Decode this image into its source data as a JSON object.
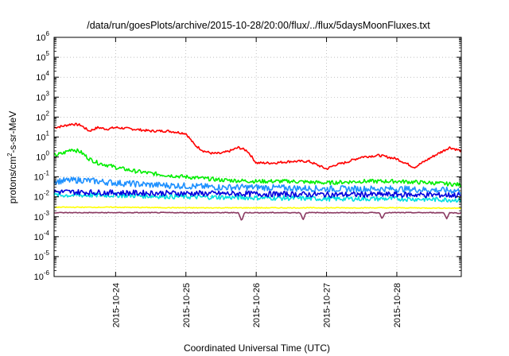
{
  "chart_data": {
    "type": "line",
    "title": "/data/run/goesPlots/archive/2015-10-28/20:00/flux/../flux/5daysMoonFluxes.txt",
    "xlabel": "Coordinated Universal Time (UTC)",
    "ylabel_parts": [
      "protons/cm",
      "2",
      "-s-sr-MeV"
    ],
    "yscale": "log",
    "ylim": [
      1e-06,
      1000000.0
    ],
    "xlim": [
      "2015-10-23T03:00",
      "2015-10-28T22:00"
    ],
    "grid": true,
    "legend": "none",
    "y_ticks": [
      {
        "base": "10",
        "exp": "-6",
        "value": 1e-06
      },
      {
        "base": "10",
        "exp": "-5",
        "value": 1e-05
      },
      {
        "base": "10",
        "exp": "-4",
        "value": 0.0001
      },
      {
        "base": "10",
        "exp": "-3",
        "value": 0.001
      },
      {
        "base": "10",
        "exp": "-2",
        "value": 0.01
      },
      {
        "base": "10",
        "exp": "-1",
        "value": 0.1
      },
      {
        "base": "10",
        "exp": "0",
        "value": 1
      },
      {
        "base": "10",
        "exp": "1",
        "value": 10
      },
      {
        "base": "10",
        "exp": "2",
        "value": 100
      },
      {
        "base": "10",
        "exp": "3",
        "value": 1000
      },
      {
        "base": "10",
        "exp": "4",
        "value": 10000
      },
      {
        "base": "10",
        "exp": "5",
        "value": 100000
      },
      {
        "base": "10",
        "exp": "6",
        "value": 1000000
      }
    ],
    "x_ticks": [
      {
        "label": "2015-10-24",
        "value": "2015-10-24T00:00"
      },
      {
        "label": "2015-10-25",
        "value": "2015-10-25T00:00"
      },
      {
        "label": "2015-10-26",
        "value": "2015-10-26T00:00"
      },
      {
        "label": "2015-10-27",
        "value": "2015-10-27T00:00"
      },
      {
        "label": "2015-10-28",
        "value": "2015-10-28T00:00"
      }
    ],
    "series": [
      {
        "color": "#ff0000",
        "noise": 0.03,
        "x": [
          "2015-10-23T03:00",
          "2015-10-23T06:00",
          "2015-10-23T09:00",
          "2015-10-23T12:00",
          "2015-10-23T15:00",
          "2015-10-23T18:00",
          "2015-10-23T21:00",
          "2015-10-24T00:00",
          "2015-10-24T06:00",
          "2015-10-24T12:00",
          "2015-10-24T18:00",
          "2015-10-25T00:00",
          "2015-10-25T03:00",
          "2015-10-25T06:00",
          "2015-10-25T09:00",
          "2015-10-25T12:00",
          "2015-10-25T15:00",
          "2015-10-25T18:00",
          "2015-10-25T21:00",
          "2015-10-26T00:00",
          "2015-10-26T06:00",
          "2015-10-26T12:00",
          "2015-10-26T18:00",
          "2015-10-27T00:00",
          "2015-10-27T03:00",
          "2015-10-27T06:00",
          "2015-10-27T12:00",
          "2015-10-27T18:00",
          "2015-10-28T00:00",
          "2015-10-28T06:00",
          "2015-10-28T12:00",
          "2015-10-28T18:00",
          "2015-10-28T22:00"
        ],
        "y": [
          30,
          35,
          45,
          40,
          20,
          30,
          25,
          30,
          25,
          20,
          20,
          15,
          4,
          2,
          1.5,
          1.5,
          2,
          3,
          2,
          0.5,
          0.5,
          0.6,
          0.6,
          0.25,
          0.4,
          0.5,
          1,
          1.2,
          0.8,
          0.3,
          1,
          3,
          2
        ]
      },
      {
        "color": "#00ee00",
        "noise": 0.05,
        "x": [
          "2015-10-23T03:00",
          "2015-10-23T06:00",
          "2015-10-23T09:00",
          "2015-10-23T12:00",
          "2015-10-23T15:00",
          "2015-10-23T18:00",
          "2015-10-23T21:00",
          "2015-10-24T00:00",
          "2015-10-24T06:00",
          "2015-10-24T12:00",
          "2015-10-24T18:00",
          "2015-10-25T00:00",
          "2015-10-25T12:00",
          "2015-10-26T00:00",
          "2015-10-26T12:00",
          "2015-10-27T00:00",
          "2015-10-27T12:00",
          "2015-10-28T00:00",
          "2015-10-28T12:00",
          "2015-10-28T22:00"
        ],
        "y": [
          1.2,
          1.5,
          2.5,
          1.8,
          0.8,
          0.5,
          0.4,
          0.3,
          0.2,
          0.15,
          0.12,
          0.1,
          0.07,
          0.06,
          0.06,
          0.05,
          0.06,
          0.06,
          0.05,
          0.04
        ]
      },
      {
        "color": "#1e90ff",
        "noise": 0.08,
        "x": [
          "2015-10-23T03:00",
          "2015-10-23T12:00",
          "2015-10-24T00:00",
          "2015-10-24T12:00",
          "2015-10-25T00:00",
          "2015-10-25T12:00",
          "2015-10-26T00:00",
          "2015-10-27T00:00",
          "2015-10-28T00:00",
          "2015-10-28T22:00"
        ],
        "y": [
          0.06,
          0.07,
          0.05,
          0.04,
          0.035,
          0.03,
          0.03,
          0.025,
          0.025,
          0.02
        ]
      },
      {
        "color": "#00e0e0",
        "noise": 0.06,
        "x": [
          "2015-10-23T03:00",
          "2015-10-24T00:00",
          "2015-10-25T00:00",
          "2015-10-26T00:00",
          "2015-10-27T00:00",
          "2015-10-28T00:00",
          "2015-10-28T22:00"
        ],
        "y": [
          0.012,
          0.012,
          0.01,
          0.009,
          0.008,
          0.008,
          0.007
        ]
      },
      {
        "color": "#0000dd",
        "noise": 0.07,
        "x": [
          "2015-10-23T03:00",
          "2015-10-24T00:00",
          "2015-10-25T00:00",
          "2015-10-26T00:00",
          "2015-10-27T00:00",
          "2015-10-28T00:00",
          "2015-10-28T22:00"
        ],
        "y": [
          0.018,
          0.016,
          0.015,
          0.014,
          0.013,
          0.013,
          0.012
        ]
      },
      {
        "color": "#ffff00",
        "noise": 0.01,
        "x": [
          "2015-10-23T03:00",
          "2015-10-24T00:00",
          "2015-10-25T00:00",
          "2015-10-26T00:00",
          "2015-10-27T00:00",
          "2015-10-28T00:00",
          "2015-10-28T22:00"
        ],
        "y": [
          0.003,
          0.003,
          0.0028,
          0.0028,
          0.0028,
          0.0028,
          0.0027
        ]
      },
      {
        "color": "#8b3a62",
        "noise": 0.01,
        "x": [
          "2015-10-23T03:00",
          "2015-10-24T00:00",
          "2015-10-25T00:00",
          "2015-10-25T18:00",
          "2015-10-25T19:00",
          "2015-10-25T20:00",
          "2015-10-26T00:00",
          "2015-10-26T15:00",
          "2015-10-26T16:00",
          "2015-10-26T17:00",
          "2015-10-27T00:00",
          "2015-10-27T18:00",
          "2015-10-27T19:00",
          "2015-10-27T20:00",
          "2015-10-28T00:00",
          "2015-10-28T16:00",
          "2015-10-28T17:00",
          "2015-10-28T18:00",
          "2015-10-28T22:00"
        ],
        "y": [
          0.0016,
          0.0016,
          0.0016,
          0.0016,
          0.0006,
          0.0016,
          0.0016,
          0.0016,
          0.0007,
          0.0016,
          0.0016,
          0.0016,
          0.0008,
          0.0016,
          0.0016,
          0.0016,
          0.0008,
          0.0016,
          0.0015
        ]
      }
    ]
  }
}
